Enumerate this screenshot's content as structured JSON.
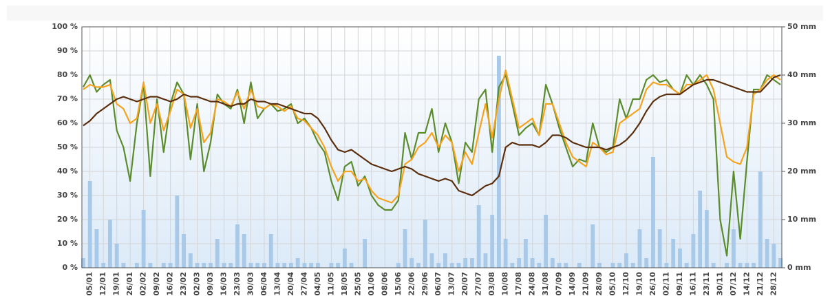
{
  "chart_data": {
    "type": "line",
    "categories": [
      null,
      "05/01",
      null,
      "12/01",
      null,
      "19/01",
      null,
      "26/01",
      null,
      "02/02",
      null,
      "09/02",
      null,
      "16/02",
      null,
      "23/02",
      null,
      "02/03",
      null,
      "09/03",
      null,
      "16/03",
      null,
      "23/03",
      null,
      "30/03",
      null,
      "06/04",
      null,
      "13/04",
      null,
      "20/04",
      null,
      "27/04",
      null,
      "04/05",
      null,
      "11/05",
      null,
      "18/05",
      null,
      "25/05",
      null,
      "01/06",
      null,
      "08/06",
      null,
      "15/06",
      null,
      "22/06",
      null,
      "29/06",
      null,
      "06/07",
      null,
      "13/07",
      null,
      "20/07",
      null,
      "27/07",
      null,
      "03/08",
      null,
      "10/08",
      null,
      "17/08",
      null,
      "24/08",
      null,
      "31/08",
      null,
      "07/09",
      null,
      "14/09",
      null,
      "21/09",
      null,
      "28/09",
      null,
      "05/10",
      null,
      "12/10",
      null,
      "19/10",
      null,
      "26/10",
      null,
      "02/11",
      null,
      "09/11",
      null,
      "16/11",
      null,
      "23/11",
      null,
      "30/11",
      null,
      "07/12",
      null,
      "14/12",
      null,
      "21/12",
      null,
      "28/12",
      null
    ],
    "ylim": [
      0,
      100
    ],
    "yticks": [
      {
        "value": 0,
        "label": "0 %"
      },
      {
        "value": 10,
        "label": "10 %"
      },
      {
        "value": 20,
        "label": "20 %"
      },
      {
        "value": 30,
        "label": "30 %"
      },
      {
        "value": 40,
        "label": "40 %"
      },
      {
        "value": 50,
        "label": "50 %"
      },
      {
        "value": 60,
        "label": "60 %"
      },
      {
        "value": 70,
        "label": "70 %"
      },
      {
        "value": 80,
        "label": "80 %"
      },
      {
        "value": 90,
        "label": "90 %"
      },
      {
        "value": 100,
        "label": "100 %"
      }
    ],
    "y2lim": [
      0,
      50
    ],
    "y2ticks": [
      {
        "value": 0,
        "label": "0 mm"
      },
      {
        "value": 10,
        "label": "10 mm"
      },
      {
        "value": 20,
        "label": "20 mm"
      },
      {
        "value": 30,
        "label": "30 mm"
      },
      {
        "value": 40,
        "label": "40 mm"
      },
      {
        "value": 50,
        "label": "50 mm"
      }
    ],
    "grid": true,
    "series": [
      {
        "type": "bar",
        "axis": "y2",
        "color": "#a9c9e8",
        "values": [
          2,
          18,
          8,
          1,
          10,
          5,
          1,
          0,
          1,
          12,
          1,
          0,
          1,
          1,
          15,
          7,
          3,
          1,
          1,
          1,
          6,
          1,
          1,
          9,
          7,
          1,
          1,
          1,
          7,
          1,
          1,
          1,
          2,
          1,
          1,
          1,
          0,
          1,
          1,
          4,
          1,
          0,
          6,
          0,
          0,
          0,
          0,
          1,
          8,
          2,
          1,
          10,
          3,
          1,
          3,
          1,
          1,
          2,
          2,
          13,
          3,
          11,
          44,
          6,
          1,
          2,
          6,
          2,
          1,
          11,
          2,
          1,
          1,
          0,
          1,
          0,
          9,
          1,
          0,
          1,
          1,
          3,
          1,
          8,
          2,
          23,
          8,
          1,
          6,
          4,
          1,
          7,
          16,
          12,
          1,
          0,
          1,
          8,
          1,
          1,
          1,
          20,
          6,
          5,
          2
        ]
      },
      {
        "type": "line",
        "color": "#5b8c2c",
        "values": [
          75,
          80,
          73,
          76,
          78,
          57,
          50,
          36,
          60,
          76,
          38,
          70,
          48,
          68,
          77,
          72,
          45,
          68,
          40,
          52,
          72,
          68,
          66,
          74,
          60,
          77,
          62,
          66,
          68,
          65,
          66,
          68,
          60,
          62,
          58,
          52,
          48,
          36,
          28,
          42,
          44,
          34,
          38,
          30,
          26,
          24,
          24,
          28,
          56,
          45,
          56,
          56,
          66,
          48,
          60,
          52,
          35,
          52,
          48,
          70,
          74,
          48,
          75,
          80,
          68,
          55,
          58,
          60,
          55,
          76,
          68,
          58,
          50,
          42,
          45,
          44,
          60,
          50,
          48,
          50,
          70,
          62,
          70,
          70,
          78,
          80,
          77,
          78,
          74,
          72,
          80,
          76,
          80,
          76,
          70,
          20,
          5,
          40,
          12,
          44,
          74,
          74,
          80,
          78,
          76
        ]
      },
      {
        "type": "line",
        "color": "#f5a21d",
        "values": [
          74,
          76,
          75,
          75,
          76,
          68,
          66,
          60,
          62,
          77,
          60,
          68,
          57,
          65,
          74,
          72,
          58,
          66,
          52,
          56,
          70,
          69,
          67,
          73,
          66,
          74,
          67,
          66,
          68,
          67,
          65,
          67,
          62,
          61,
          58,
          55,
          50,
          42,
          36,
          40,
          40,
          36,
          37,
          32,
          29,
          28,
          27,
          30,
          43,
          45,
          50,
          52,
          56,
          50,
          55,
          52,
          40,
          48,
          43,
          56,
          68,
          54,
          70,
          82,
          70,
          58,
          60,
          62,
          55,
          68,
          68,
          60,
          52,
          46,
          44,
          42,
          52,
          50,
          47,
          48,
          60,
          62,
          64,
          66,
          74,
          77,
          76,
          76,
          74,
          72,
          76,
          76,
          78,
          80,
          74,
          60,
          46,
          44,
          43,
          50,
          72,
          74,
          78,
          80,
          78
        ]
      },
      {
        "type": "line",
        "color": "#5a2d0c",
        "values": [
          59,
          61,
          64,
          66,
          68,
          70,
          71,
          70,
          69,
          70,
          71,
          71,
          70,
          69,
          70,
          72,
          71,
          71,
          70,
          69,
          69,
          68,
          67,
          68,
          68,
          70,
          69,
          69,
          68,
          68,
          67,
          66,
          65,
          64,
          64,
          62,
          58,
          53,
          49,
          48,
          49,
          47,
          45,
          43,
          42,
          41,
          40,
          41,
          42,
          41,
          39,
          38,
          37,
          36,
          37,
          36,
          32,
          31,
          30,
          32,
          34,
          35,
          38,
          50,
          52,
          51,
          51,
          51,
          50,
          52,
          55,
          55,
          54,
          52,
          51,
          50,
          50,
          50,
          49,
          50,
          51,
          53,
          56,
          60,
          65,
          69,
          71,
          72,
          72,
          72,
          74,
          76,
          77,
          78,
          78,
          77,
          76,
          75,
          74,
          73,
          73,
          73,
          76,
          79,
          80
        ]
      }
    ]
  }
}
